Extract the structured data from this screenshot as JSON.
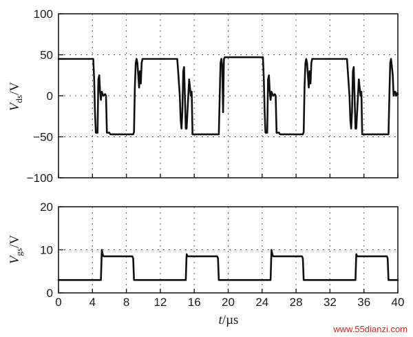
{
  "chart_data": [
    {
      "type": "line",
      "ylabel_main": "V",
      "ylabel_sub": "ds",
      "ylabel_unit": "/V",
      "ylim": [
        -100,
        100
      ],
      "yticks": [
        100,
        50,
        0,
        -50,
        -100
      ],
      "ytick_labels": [
        "100",
        "50",
        "0",
        "−50",
        "−100"
      ],
      "xlim": [
        0,
        40
      ],
      "grid": true,
      "series": [
        {
          "x": [
            0,
            4.1,
            4.2,
            4.3,
            4.4,
            4.6,
            4.7,
            4.8,
            4.9,
            5.0,
            5.1,
            5.3,
            5.5,
            5.6,
            5.7,
            5.8,
            5.9,
            6.0,
            6.1,
            6.2,
            8.8,
            8.9,
            9.0,
            9.1,
            9.2,
            9.3,
            9.5,
            9.6,
            9.7,
            9.8,
            9.9,
            10.1,
            14.0,
            14.1,
            14.3,
            14.4,
            14.5,
            14.6,
            14.7,
            14.8,
            14.9,
            15.0,
            15.1,
            15.2,
            15.4,
            15.5,
            15.6,
            15.7,
            15.8,
            15.9,
            16.0,
            18.8,
            18.9,
            19.0,
            19.1,
            19.2,
            19.3,
            19.4,
            19.5,
            19.6,
            19.7,
            19.8,
            19.9,
            20.0,
            24.1,
            24.2,
            24.3,
            24.4,
            24.6,
            24.7,
            24.8,
            24.9,
            25.0,
            25.1,
            25.3,
            25.5,
            25.6,
            25.7,
            25.8,
            25.9,
            26.0,
            26.1,
            26.2,
            28.8,
            28.9,
            29.0,
            29.1,
            29.2,
            29.3,
            29.5,
            29.6,
            29.7,
            29.8,
            29.9,
            30.1,
            34.0,
            34.1,
            34.3,
            34.4,
            34.5,
            34.6,
            34.7,
            34.8,
            34.9,
            35.0,
            35.1,
            35.2,
            35.4,
            35.5,
            35.6,
            35.7,
            35.8,
            35.9,
            36.0,
            38.8,
            38.9,
            39.0,
            39.1,
            39.2,
            39.3,
            39.4,
            39.5,
            39.6,
            39.7,
            39.8,
            39.9,
            40.0
          ],
          "y": [
            45,
            45,
            20,
            -20,
            -45,
            -45,
            20,
            25,
            5,
            -5,
            5,
            0,
            2,
            0,
            -45,
            -45,
            -45,
            -45,
            -47,
            -47,
            -47,
            -44,
            10,
            40,
            45,
            40,
            10,
            30,
            15,
            40,
            45,
            45,
            45,
            30,
            0,
            -30,
            -40,
            -20,
            30,
            35,
            0,
            -40,
            -40,
            -20,
            20,
            10,
            0,
            5,
            -47,
            -47,
            -47,
            -47,
            -47,
            0,
            40,
            45,
            35,
            -20,
            45,
            47,
            47,
            47,
            47,
            47,
            47,
            20,
            -20,
            -45,
            -45,
            20,
            25,
            5,
            -5,
            5,
            0,
            2,
            0,
            -45,
            -45,
            -45,
            -45,
            -47,
            -47,
            -47,
            -44,
            10,
            40,
            45,
            40,
            10,
            30,
            15,
            40,
            45,
            45,
            45,
            30,
            0,
            -30,
            -40,
            -20,
            30,
            35,
            0,
            -40,
            -40,
            -20,
            20,
            10,
            0,
            5,
            -47,
            -47,
            -47,
            -47,
            -47,
            0,
            40,
            45,
            35,
            25,
            0,
            5,
            5,
            0,
            3,
            2
          ]
        }
      ]
    },
    {
      "type": "line",
      "ylabel_main": "V",
      "ylabel_sub": "gs",
      "ylabel_unit": "/V",
      "ylim": [
        0,
        20
      ],
      "yticks": [
        20,
        10,
        0
      ],
      "ytick_labels": [
        "20",
        "10",
        "0"
      ],
      "xlim": [
        0,
        40
      ],
      "xticks": [
        0,
        4,
        8,
        12,
        16,
        20,
        24,
        28,
        32,
        36,
        40
      ],
      "xlabel_main": "t",
      "xlabel_unit": "/µs",
      "grid": true,
      "series": [
        {
          "x": [
            0,
            5.0,
            5.1,
            5.2,
            5.3,
            8.7,
            8.8,
            8.9,
            9.0,
            15.0,
            15.1,
            15.2,
            18.7,
            18.8,
            18.9,
            19.0,
            25.0,
            25.1,
            25.2,
            25.3,
            28.7,
            28.8,
            28.9,
            29.0,
            35.0,
            35.1,
            35.2,
            38.7,
            38.8,
            38.9,
            39.0,
            40.0
          ],
          "y": [
            3,
            3,
            10,
            9,
            8.5,
            8.5,
            8,
            3,
            3,
            3,
            9,
            8.5,
            8.5,
            8,
            3,
            3,
            3,
            10,
            9,
            8.5,
            8.5,
            8,
            3,
            3,
            3,
            9,
            8.5,
            8.5,
            8,
            3,
            3,
            3
          ]
        }
      ]
    }
  ],
  "watermark": "www.55dianzi.com"
}
